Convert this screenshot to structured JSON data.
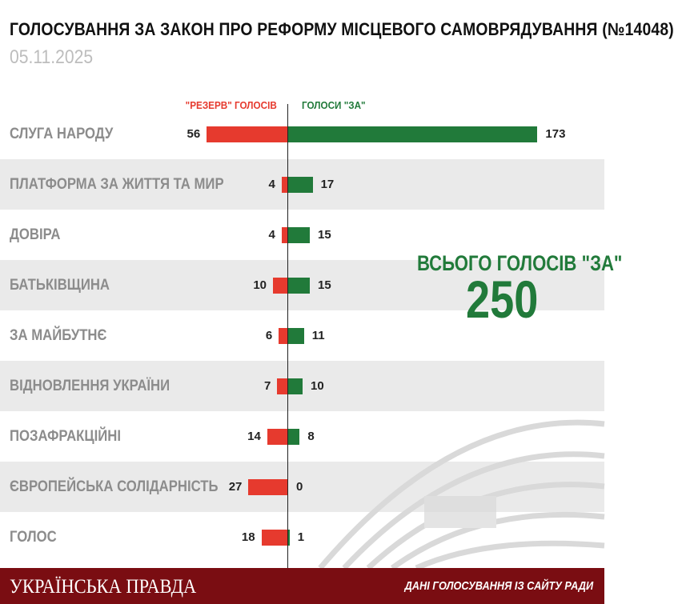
{
  "header": {
    "title": "ГОЛОСУВАННЯ ЗА ЗАКОН ПРО РЕФОРМУ МІСЦЕВОГО САМОВРЯДУВАННЯ (№14048)",
    "date": "05.11.2025"
  },
  "chart_data": {
    "type": "bar",
    "orientation": "horizontal-diverging",
    "categories": [
      "СЛУГА НАРОДУ",
      "ПЛАТФОРМА ЗА ЖИТТЯ ТА МИР",
      "ДОВІРА",
      "БАТЬКІВЩИНА",
      "ЗА МАЙБУТНЄ",
      "ВІДНОВЛЕННЯ УКРАЇНИ",
      "ПОЗАФРАКЦІЙНІ",
      "ЄВРОПЕЙСЬКА СОЛІДАРНІСТЬ",
      "ГОЛОС"
    ],
    "series": [
      {
        "name": "\"РЕЗЕРВ\" ГОЛОСІВ",
        "side": "left",
        "color": "#e63a2e",
        "values": [
          56,
          4,
          4,
          10,
          6,
          7,
          14,
          27,
          18
        ]
      },
      {
        "name": "ГОЛОСИ \"ЗА\"",
        "side": "right",
        "color": "#217a3a",
        "values": [
          173,
          17,
          15,
          15,
          11,
          10,
          8,
          0,
          1
        ]
      }
    ],
    "total": {
      "label": "ВСЬОГО ГОЛОСІВ \"ЗА\"",
      "value": "250"
    },
    "alternating_row_shading": true
  },
  "footer": {
    "logo": "УКРАЇНСЬКА ПРАВДА",
    "source": "ДАНІ ГОЛОСУВАННЯ ІЗ САЙТУ РАДИ"
  }
}
